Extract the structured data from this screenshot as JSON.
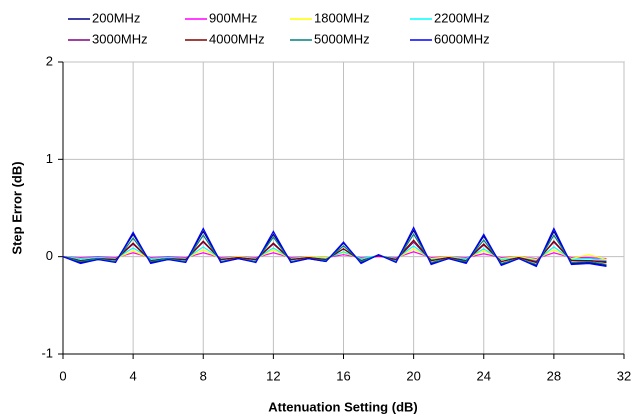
{
  "chart_data": {
    "type": "line",
    "x_label": "Attenuation Setting (dB)",
    "y_label": "Step Error (dB)",
    "x": [
      0,
      1,
      2,
      3,
      4,
      5,
      6,
      7,
      8,
      9,
      10,
      11,
      12,
      13,
      14,
      15,
      16,
      17,
      18,
      19,
      20,
      21,
      22,
      23,
      24,
      25,
      26,
      27,
      28,
      29,
      30,
      31
    ],
    "series": [
      {
        "name": "200MHz",
        "color": "#000080",
        "values": [
          0,
          -0.06,
          -0.03,
          -0.05,
          0.23,
          -0.06,
          -0.03,
          -0.05,
          0.26,
          -0.05,
          -0.02,
          -0.05,
          0.23,
          -0.05,
          -0.02,
          -0.05,
          0.14,
          -0.06,
          0.02,
          -0.05,
          0.27,
          -0.07,
          -0.02,
          -0.06,
          0.21,
          -0.08,
          -0.02,
          -0.09,
          0.26,
          -0.07,
          -0.06,
          -0.09
        ]
      },
      {
        "name": "900MHz",
        "color": "#ff00ff",
        "values": [
          0,
          -0.01,
          0,
          -0.01,
          0.04,
          -0.01,
          0,
          -0.01,
          0.04,
          -0.01,
          0,
          -0.01,
          0.04,
          -0.01,
          0,
          -0.01,
          0.02,
          -0.01,
          0,
          -0.01,
          0.05,
          -0.01,
          0,
          -0.01,
          0.03,
          -0.01,
          0,
          -0.02,
          0.04,
          -0.01,
          -0.01,
          -0.02
        ]
      },
      {
        "name": "1800MHz",
        "color": "#ffff00",
        "values": [
          0,
          -0.02,
          -0.01,
          -0.02,
          0.06,
          -0.02,
          -0.01,
          -0.02,
          0.07,
          -0.02,
          0,
          -0.02,
          0.07,
          -0.02,
          0,
          -0.01,
          0.04,
          -0.02,
          0.01,
          -0.02,
          0.08,
          -0.02,
          0,
          -0.02,
          0.06,
          -0.02,
          0,
          -0.03,
          0.07,
          -0.02,
          0.02,
          -0.03
        ]
      },
      {
        "name": "2200MHz",
        "color": "#00ffff",
        "values": [
          0,
          -0.02,
          -0.01,
          -0.02,
          0.09,
          -0.02,
          -0.01,
          -0.02,
          0.1,
          -0.02,
          -0.01,
          -0.02,
          0.09,
          -0.02,
          -0.01,
          -0.02,
          0.05,
          -0.02,
          0.01,
          -0.02,
          0.11,
          -0.03,
          -0.01,
          -0.02,
          0.08,
          -0.03,
          -0.01,
          -0.04,
          0.1,
          -0.03,
          -0.02,
          -0.04
        ]
      },
      {
        "name": "3000MHz",
        "color": "#800080",
        "values": [
          0,
          -0.04,
          -0.02,
          -0.03,
          0.13,
          -0.04,
          -0.02,
          -0.03,
          0.15,
          -0.03,
          -0.01,
          -0.03,
          0.13,
          -0.03,
          -0.01,
          -0.03,
          0.08,
          -0.04,
          0.01,
          -0.03,
          0.15,
          -0.04,
          -0.01,
          -0.04,
          0.12,
          -0.05,
          -0.01,
          -0.05,
          0.15,
          -0.04,
          -0.04,
          -0.05
        ]
      },
      {
        "name": "4000MHz",
        "color": "#800000",
        "values": [
          0,
          -0.04,
          -0.02,
          -0.03,
          0.14,
          -0.04,
          -0.02,
          -0.03,
          0.16,
          -0.03,
          -0.01,
          -0.03,
          0.14,
          -0.03,
          -0.01,
          -0.03,
          0.08,
          -0.04,
          0.01,
          -0.03,
          0.17,
          -0.04,
          -0.01,
          -0.04,
          0.13,
          -0.05,
          -0.01,
          -0.06,
          0.16,
          -0.04,
          -0.04,
          -0.06
        ]
      },
      {
        "name": "5000MHz",
        "color": "#008080",
        "values": [
          0,
          -0.05,
          -0.02,
          -0.05,
          0.19,
          -0.05,
          -0.02,
          -0.05,
          0.22,
          -0.05,
          -0.02,
          -0.05,
          0.2,
          -0.05,
          -0.02,
          -0.04,
          0.11,
          -0.05,
          0.02,
          -0.05,
          0.23,
          -0.06,
          -0.02,
          -0.05,
          0.17,
          -0.07,
          -0.02,
          -0.08,
          0.22,
          -0.06,
          -0.05,
          -0.08
        ]
      },
      {
        "name": "6000MHz",
        "color": "#0000ff",
        "values": [
          0,
          -0.07,
          -0.03,
          -0.06,
          0.25,
          -0.07,
          -0.03,
          -0.06,
          0.29,
          -0.06,
          -0.02,
          -0.06,
          0.26,
          -0.06,
          -0.02,
          -0.05,
          0.15,
          -0.07,
          0.02,
          -0.06,
          0.3,
          -0.08,
          -0.02,
          -0.07,
          0.23,
          -0.09,
          -0.02,
          -0.1,
          0.29,
          -0.08,
          -0.07,
          -0.1
        ]
      }
    ],
    "xlim": [
      0,
      32
    ],
    "xticks": [
      0,
      4,
      8,
      12,
      16,
      20,
      24,
      28,
      32
    ],
    "ylim": [
      -1,
      2
    ],
    "yticks": [
      -1,
      0,
      1,
      2
    ],
    "grid": true,
    "legend": "top"
  }
}
